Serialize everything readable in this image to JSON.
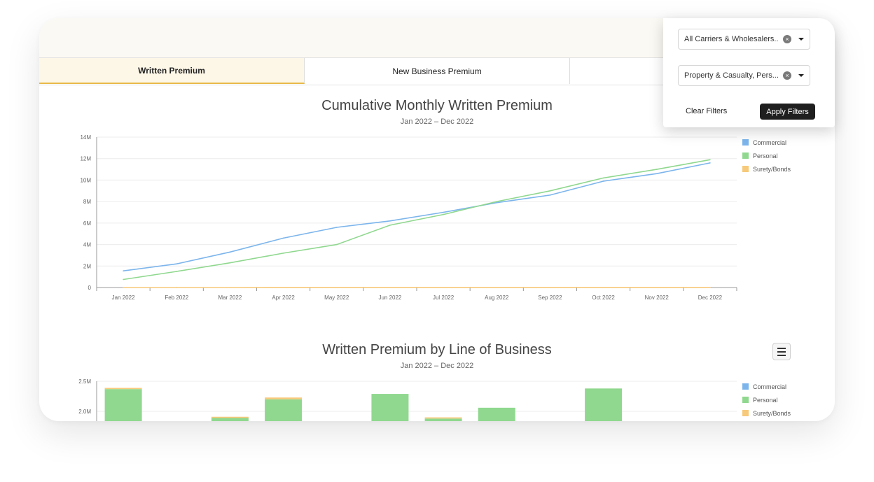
{
  "tabs": [
    {
      "label": "Written Premium",
      "active": true
    },
    {
      "label": "New Business Premium",
      "active": false
    },
    {
      "label": "",
      "active": false
    }
  ],
  "filters": {
    "carriers": "All Carriers & Wholesalers...",
    "lines": "Property & Casualty, Pers...",
    "clear_label": "Clear Filters",
    "apply_label": "Apply Filters"
  },
  "colors": {
    "commercial": "#7cb5ec",
    "personal": "#90d88f",
    "surety": "#f7c97a",
    "accent": "#e9b949"
  },
  "chart_data": [
    {
      "type": "line",
      "title": "Cumulative Monthly Written Premium",
      "subtitle": "Jan 2022 – Dec 2022",
      "categories": [
        "Jan 2022",
        "Feb 2022",
        "Mar 2022",
        "Apr 2022",
        "May 2022",
        "Jun 2022",
        "Jul 2022",
        "Aug 2022",
        "Sep 2022",
        "Oct 2022",
        "Nov 2022",
        "Dec 2022"
      ],
      "yticks": [
        "0",
        "2M",
        "4M",
        "6M",
        "8M",
        "10M",
        "12M",
        "14M"
      ],
      "ylim": [
        0,
        14000000
      ],
      "legend": "right",
      "series": [
        {
          "name": "Commercial",
          "values": [
            1550000,
            2200000,
            3300000,
            4600000,
            5600000,
            6200000,
            7000000,
            7900000,
            8600000,
            9900000,
            10600000,
            11600000
          ]
        },
        {
          "name": "Personal",
          "values": [
            750000,
            1500000,
            2300000,
            3200000,
            4000000,
            5800000,
            6800000,
            8000000,
            9000000,
            10200000,
            11000000,
            11900000
          ]
        },
        {
          "name": "Surety/Bonds",
          "values": [
            0,
            0,
            0,
            10000,
            10000,
            10000,
            10000,
            10000,
            10000,
            10000,
            10000,
            10000
          ]
        }
      ]
    },
    {
      "type": "bar",
      "title": "Written Premium by Line of Business",
      "subtitle": "Jan 2022 – Dec 2022",
      "yticks": [
        "2.0M",
        "2.5M"
      ],
      "ylim": [
        1.825,
        2.5
      ],
      "legend": "right",
      "series": [
        {
          "name": "Commercial",
          "values": [
            0,
            0,
            0,
            0,
            0,
            0,
            0,
            0,
            0,
            0,
            0,
            0
          ]
        },
        {
          "name": "Personal",
          "values": [
            2.37,
            1.8,
            1.89,
            2.2,
            1.8,
            2.29,
            1.88,
            2.06,
            1.8,
            2.38,
            1.8,
            1.8
          ]
        },
        {
          "name": "Surety/Bonds",
          "values": [
            0.02,
            0,
            0.02,
            0.03,
            0,
            0,
            0.02,
            0,
            0,
            0,
            0,
            0
          ]
        }
      ]
    }
  ]
}
